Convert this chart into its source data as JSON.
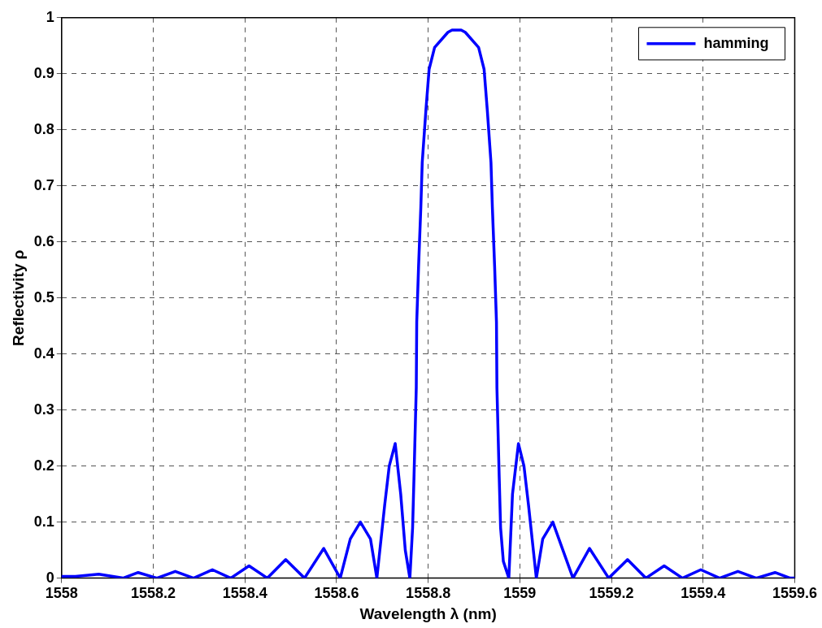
{
  "chart_data": {
    "type": "line",
    "xlabel": "Wavelength λ (nm)",
    "ylabel": "Reflectivity ρ",
    "xlim": [
      1558,
      1559.6
    ],
    "xticks": [
      1558,
      1558.2,
      1558.4,
      1558.6,
      1558.8,
      1559,
      1559.2,
      1559.4,
      1559.6
    ],
    "ylim": [
      0,
      1
    ],
    "yticks": [
      0,
      0.1,
      0.2,
      0.3,
      0.4,
      0.5,
      0.6,
      0.7,
      0.8,
      0.9,
      1
    ],
    "grid": true,
    "legend": "top right",
    "marker": "none",
    "line_style": "solid",
    "series": [
      {
        "name": "hamming",
        "color": "#0000ff",
        "x": [
          1558,
          1558.03,
          1558.081,
          1558.134,
          1558.167,
          1558.208,
          1558.248,
          1558.288,
          1558.329,
          1558.369,
          1558.409,
          1558.449,
          1558.489,
          1558.53,
          1558.572,
          1558.608,
          1558.63,
          1558.652,
          1558.674,
          1558.688,
          1558.705,
          1558.715,
          1558.728,
          1558.74,
          1558.75,
          1558.76,
          1558.766,
          1558.769,
          1558.774,
          1558.775,
          1558.779,
          1558.784,
          1558.787,
          1558.795,
          1558.802,
          1558.814,
          1558.843,
          1558.852,
          1558.862,
          1558.872,
          1558.881,
          1558.91,
          1558.922,
          1558.929,
          1558.937,
          1558.94,
          1558.945,
          1558.949,
          1558.95,
          1558.955,
          1558.958,
          1558.964,
          1558.976,
          1558.984,
          1558.997,
          1559.009,
          1559.019,
          1559.036,
          1559.05,
          1559.072,
          1559.094,
          1559.116,
          1559.152,
          1559.194,
          1559.235,
          1559.275,
          1559.315,
          1559.355,
          1559.395,
          1559.436,
          1559.476,
          1559.516,
          1559.557,
          1559.59,
          1559.6
        ],
        "values": [
          0.003,
          0.003,
          0.007,
          0,
          0.01,
          0,
          0.012,
          0,
          0.015,
          0,
          0.022,
          0,
          0.033,
          0,
          0.053,
          0,
          0.07,
          0.1,
          0.07,
          0,
          0.13,
          0.2,
          0.24,
          0.15,
          0.05,
          0,
          0.09,
          0.18,
          0.34,
          0.457,
          0.556,
          0.663,
          0.742,
          0.835,
          0.908,
          0.947,
          0.974,
          0.978,
          0.978,
          0.978,
          0.974,
          0.947,
          0.908,
          0.835,
          0.742,
          0.663,
          0.556,
          0.457,
          0.34,
          0.18,
          0.09,
          0.03,
          0,
          0.15,
          0.24,
          0.2,
          0.13,
          0,
          0.07,
          0.1,
          0.05,
          0,
          0.053,
          0,
          0.033,
          0,
          0.022,
          0,
          0.015,
          0,
          0.012,
          0,
          0.01,
          0,
          0
        ]
      }
    ]
  }
}
